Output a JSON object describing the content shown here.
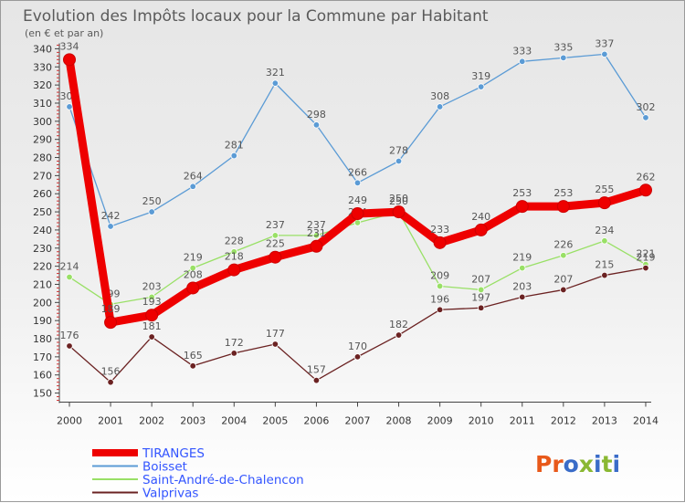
{
  "chart_data": {
    "type": "line",
    "title": "Evolution des Impôts locaux pour la Commune par Habitant",
    "subtitle": "(en € et par an)",
    "xlabel": "",
    "ylabel": "",
    "x": [
      "2000",
      "2001",
      "2002",
      "2003",
      "2004",
      "2005",
      "2006",
      "2007",
      "2008",
      "2009",
      "2010",
      "2011",
      "2012",
      "2013",
      "2014"
    ],
    "y_ticks": [
      "150",
      "160",
      "170",
      "180",
      "190",
      "200",
      "210",
      "220",
      "230",
      "240",
      "250",
      "260",
      "270",
      "280",
      "290",
      "300",
      "310",
      "320",
      "330",
      "340"
    ],
    "ylim": [
      145,
      343
    ],
    "grid": false,
    "legend_position": "bottom-left",
    "series": [
      {
        "name": "TIRANGES",
        "color": "#ee0000",
        "values": [
          334,
          189,
          193,
          208,
          218,
          225,
          231,
          249,
          250,
          233,
          240,
          253,
          253,
          255,
          262
        ]
      },
      {
        "name": "Boisset",
        "color": "#5b9bd5",
        "values": [
          308,
          242,
          250,
          264,
          281,
          321,
          298,
          266,
          278,
          308,
          319,
          333,
          335,
          337,
          302
        ]
      },
      {
        "name": "Saint-André-de-Chalencon",
        "color": "#99e066",
        "values": [
          214,
          199,
          203,
          219,
          228,
          237,
          237,
          244,
          250,
          209,
          207,
          219,
          226,
          234,
          221
        ]
      },
      {
        "name": "Valprivas",
        "color": "#6b2222",
        "values": [
          176,
          156,
          181,
          165,
          172,
          177,
          157,
          170,
          182,
          196,
          197,
          203,
          207,
          215,
          219
        ]
      }
    ]
  },
  "brand": {
    "text": "Proxiti",
    "colors": [
      "#e8591a",
      "#3a6cc8",
      "#8ab832"
    ]
  }
}
